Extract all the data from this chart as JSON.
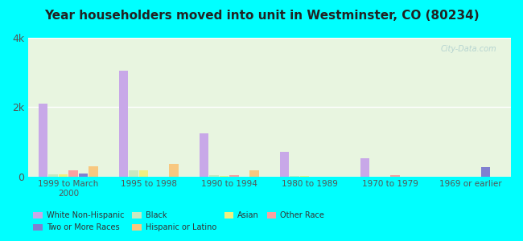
{
  "title": "Year householders moved into unit in Westminster, CO (80234)",
  "categories": [
    "1999 to March\n2000",
    "1995 to 1998",
    "1990 to 1994",
    "1980 to 1989",
    "1970 to 1979",
    "1969 or earlier"
  ],
  "series": {
    "White Non-Hispanic": [
      2100,
      3050,
      1250,
      700,
      520,
      0
    ],
    "Black": [
      50,
      175,
      30,
      20,
      0,
      0
    ],
    "Asian": [
      60,
      175,
      20,
      20,
      0,
      0
    ],
    "Other Race": [
      175,
      0,
      30,
      0,
      30,
      0
    ],
    "Two or More Races": [
      80,
      0,
      0,
      0,
      0,
      260
    ],
    "Hispanic or Latino": [
      300,
      360,
      180,
      0,
      0,
      0
    ]
  },
  "colors": {
    "White Non-Hispanic": "#c8a8e8",
    "Black": "#c8e8c0",
    "Asian": "#f0f080",
    "Other Race": "#f8a0a0",
    "Two or More Races": "#8080d0",
    "Hispanic or Latino": "#f8c880"
  },
  "ylim": [
    0,
    4000
  ],
  "yticks": [
    0,
    2000,
    4000
  ],
  "ytick_labels": [
    "0",
    "2k",
    "4k"
  ],
  "background_color": "#00ffff",
  "plot_bg_start": "#e8f5e0",
  "plot_bg_end": "#ffffff",
  "watermark": "City-Data.com"
}
